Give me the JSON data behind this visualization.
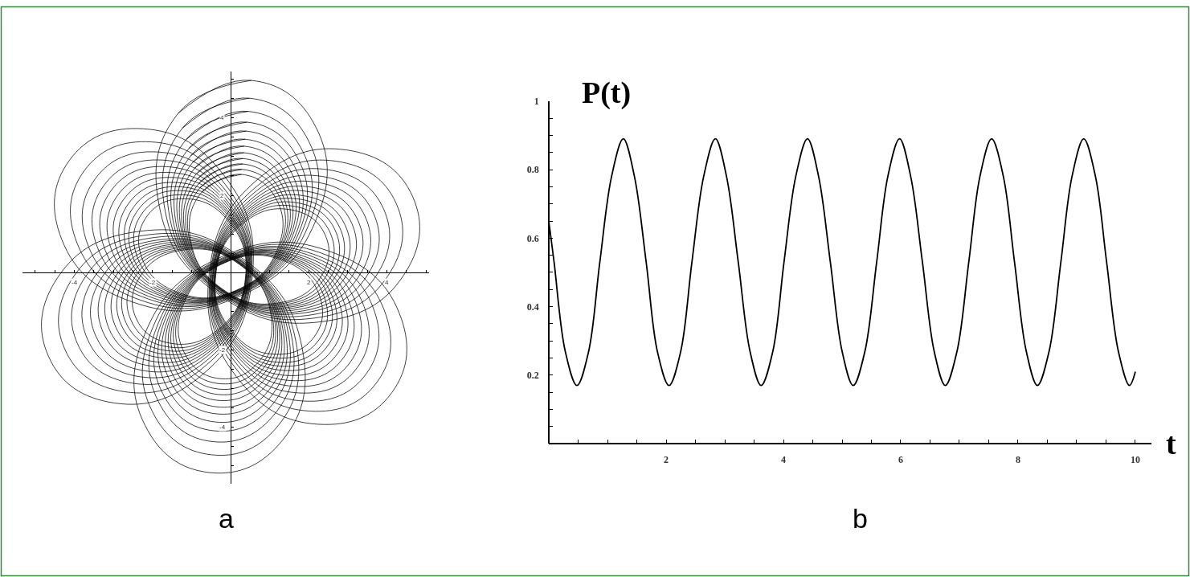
{
  "chart_data": [
    {
      "type": "line",
      "xlim": [
        -5.32,
        5.08
      ],
      "ylim": [
        -5.46,
        5.2
      ],
      "xticks": [
        {
          "value": -5,
          "label": null
        },
        {
          "value": -4.5,
          "label": null
        },
        -4,
        {
          "value": -3.5,
          "label": null
        },
        {
          "value": -3,
          "label": null
        },
        {
          "value": -2.5,
          "label": null
        },
        -2,
        {
          "value": -1.5,
          "label": null
        },
        {
          "value": -1,
          "label": null
        },
        {
          "value": -0.5,
          "label": null
        },
        {
          "value": 0.5,
          "label": null
        },
        {
          "value": 1,
          "label": null
        },
        {
          "value": 1.5,
          "label": null
        },
        2,
        {
          "value": 2.5,
          "label": null
        },
        {
          "value": 3,
          "label": null
        },
        {
          "value": 3.5,
          "label": null
        },
        4,
        {
          "value": 4.5,
          "label": null
        },
        {
          "value": 5,
          "label": null
        }
      ],
      "yticks": [
        {
          "value": -5,
          "label": null
        },
        {
          "value": -4.5,
          "label": null
        },
        -4,
        {
          "value": -3.5,
          "label": null
        },
        {
          "value": -3,
          "label": null
        },
        {
          "value": -2.5,
          "label": null
        },
        -2,
        {
          "value": -1.5,
          "label": null
        },
        {
          "value": -1,
          "label": null
        },
        {
          "value": -0.5,
          "label": null
        },
        {
          "value": 0.5,
          "label": null
        },
        {
          "value": 1,
          "label": null
        },
        {
          "value": 1.5,
          "label": null
        },
        2,
        {
          "value": 2.5,
          "label": null
        },
        {
          "value": 3,
          "label": null
        },
        {
          "value": 3.5,
          "label": null
        },
        4,
        {
          "value": 4.5,
          "label": null
        },
        {
          "value": 5,
          "label": null
        }
      ],
      "annotations": [
        "a"
      ],
      "series": [
        {
          "color": "#000000",
          "x": [
            0.53,
            -1.34,
            -1.83,
            -0.33,
            2.32,
            4.43,
            4.66,
            2.98,
            0.68,
            -0.55,
            0.15,
            2.24,
            4.13,
            4.32,
            2.51,
            -0.23,
            -2.17,
            -2.19,
            -0.53,
            1.34,
            1.83,
            0.33,
            -2.32,
            -4.43,
            -4.66,
            -2.98,
            -0.68,
            0.55,
            -0.15,
            -2.24,
            -4.13,
            -4.32,
            -2.51,
            0.23,
            2.17,
            2.19,
            0.53,
            -1.34
          ],
          "values": [
            4.97,
            4.12,
            1.74,
            -0.55,
            -1.27,
            -0.07,
            1.97,
            3.17,
            2.4,
            -0.04,
            -2.69,
            -3.92,
            -3.1,
            -1.05,
            0.56,
            0.41,
            -1.52,
            -3.95,
            -5.17,
            -4.32,
            -1.94,
            0.35,
            1.07,
            -0.13,
            -2.17,
            -3.37,
            -2.6,
            -0.16,
            2.49,
            3.72,
            2.9,
            0.85,
            -0.76,
            -0.61,
            1.32,
            3.75,
            4.97,
            4.12
          ]
        },
        {
          "color": "#000000",
          "x": [
            0.48,
            -1.23,
            -1.67,
            -0.31,
            2.1,
            4.03,
            4.24,
            2.71,
            0.61,
            -0.52,
            0.12,
            2.03,
            3.75,
            3.93,
            2.28,
            -0.21,
            -1.98,
            -2.0,
            -0.48,
            1.23,
            1.67,
            0.31,
            -2.1,
            -4.03,
            -4.24,
            -2.71,
            -0.61,
            0.52,
            -0.12,
            -2.03,
            -3.75,
            -3.93,
            -2.28,
            0.21,
            1.98,
            2.0,
            0.48,
            -1.23
          ],
          "values": [
            4.51,
            3.74,
            1.57,
            -0.52,
            -1.18,
            -0.08,
            1.79,
            2.88,
            2.18,
            -0.05,
            -2.46,
            -3.58,
            -2.83,
            -0.96,
            0.52,
            0.38,
            -1.39,
            -3.6,
            -4.71,
            -3.94,
            -1.77,
            0.32,
            0.98,
            -0.12,
            -1.99,
            -3.08,
            -2.38,
            -0.15,
            2.26,
            3.38,
            2.63,
            0.76,
            -0.72,
            -0.58,
            1.19,
            3.4,
            4.51,
            3.74
          ]
        },
        {
          "color": "#000000",
          "x": [
            0.45,
            -1.14,
            -1.56,
            -0.29,
            1.94,
            3.72,
            3.92,
            2.5,
            0.55,
            -0.5,
            0.1,
            1.87,
            3.47,
            3.64,
            2.11,
            -0.2,
            -1.84,
            -1.85,
            -0.45,
            1.14,
            1.56,
            0.29,
            -1.94,
            -3.72,
            -3.92,
            -2.5,
            -0.55,
            0.5,
            -0.1,
            -1.87,
            -3.47,
            -3.64,
            -2.11,
            0.2,
            1.84,
            1.85,
            0.45,
            -1.14
          ],
          "values": [
            4.17,
            3.44,
            1.44,
            -0.5,
            -1.11,
            -0.09,
            1.64,
            2.66,
            2.02,
            -0.05,
            -2.29,
            -3.32,
            -2.62,
            -0.88,
            0.48,
            0.36,
            -1.28,
            -3.33,
            -4.37,
            -3.64,
            -1.64,
            0.3,
            0.91,
            -0.11,
            -1.84,
            -2.86,
            -2.22,
            -0.15,
            2.09,
            3.12,
            2.42,
            0.68,
            -0.68,
            -0.56,
            1.08,
            3.13,
            4.17,
            3.44
          ]
        },
        {
          "color": "#000000",
          "x": [
            0.42,
            -1.07,
            -1.47,
            -0.28,
            1.81,
            3.48,
            3.66,
            2.33,
            0.5,
            -0.48,
            0.08,
            1.74,
            3.24,
            3.4,
            1.97,
            -0.2,
            -1.73,
            -1.74,
            -0.42,
            1.07,
            1.47,
            0.28,
            -1.81,
            -3.48,
            -3.66,
            -2.33,
            -0.5,
            0.48,
            -0.08,
            -1.74,
            -3.24,
            -3.4,
            -1.97,
            0.2,
            1.73,
            1.74,
            0.42,
            -1.07
          ],
          "values": [
            3.89,
            3.21,
            1.33,
            -0.49,
            -1.05,
            -0.1,
            1.53,
            2.49,
            1.88,
            -0.05,
            -2.15,
            -3.11,
            -2.46,
            -0.83,
            0.46,
            0.34,
            -1.19,
            -3.12,
            -4.09,
            -3.41,
            -1.53,
            0.29,
            0.85,
            -0.1,
            -1.73,
            -2.69,
            -2.08,
            -0.15,
            1.95,
            2.91,
            2.26,
            0.63,
            -0.66,
            -0.54,
            0.99,
            2.92,
            3.89,
            3.21
          ]
        },
        {
          "color": "#000000",
          "x": [
            0.4,
            -1.02,
            -1.39,
            -0.27,
            1.71,
            3.28,
            3.45,
            2.19,
            0.47,
            -0.46,
            0.07,
            1.64,
            3.06,
            3.21,
            1.86,
            -0.19,
            -1.64,
            -1.64,
            -0.4,
            1.02,
            1.39,
            0.27,
            -1.71,
            -3.28,
            -3.45,
            -2.19,
            -0.47,
            0.46,
            -0.07,
            -1.64,
            -3.06,
            -3.21,
            -1.86,
            0.19,
            1.64,
            1.64,
            0.4,
            -1.02
          ],
          "values": [
            3.66,
            3.02,
            1.24,
            -0.48,
            -1.01,
            -0.1,
            1.44,
            2.34,
            1.78,
            -0.05,
            -2.03,
            -2.94,
            -2.32,
            -0.78,
            0.43,
            0.32,
            -1.12,
            -2.94,
            -3.86,
            -3.22,
            -1.44,
            0.28,
            0.81,
            -0.1,
            -1.64,
            -2.54,
            -1.98,
            -0.15,
            1.83,
            2.74,
            2.12,
            0.58,
            -0.63,
            -0.52,
            0.92,
            2.74,
            3.66,
            3.02
          ]
        },
        {
          "color": "#000000",
          "x": [
            0.37,
            -0.97,
            -1.32,
            -0.26,
            1.61,
            3.1,
            3.26,
            2.07,
            0.43,
            -0.45,
            0.05,
            1.54,
            2.89,
            3.03,
            1.75,
            -0.18,
            -1.55,
            -1.56,
            -0.37,
            0.97,
            1.32,
            0.26,
            -1.61,
            -3.1,
            -3.26,
            -2.07,
            -0.43,
            0.45,
            -0.05,
            -1.54,
            -2.89,
            -3.03,
            -1.75,
            0.18,
            1.55,
            1.56,
            0.37,
            -0.97
          ],
          "values": [
            3.45,
            2.85,
            1.16,
            -0.46,
            -0.97,
            -0.11,
            1.35,
            2.21,
            1.68,
            -0.05,
            -1.93,
            -2.79,
            -2.2,
            -0.74,
            0.41,
            0.31,
            -1.06,
            -2.78,
            -3.65,
            -3.05,
            -1.36,
            0.26,
            0.77,
            -0.09,
            -1.55,
            -2.41,
            -1.88,
            -0.15,
            1.73,
            2.59,
            2.0,
            0.54,
            -0.61,
            -0.51,
            0.86,
            2.58,
            3.45,
            2.85
          ]
        },
        {
          "color": "#000000",
          "x": [
            0.35,
            -0.92,
            -1.26,
            -0.26,
            1.52,
            2.94,
            3.1,
            1.96,
            0.4,
            -0.44,
            0.04,
            1.46,
            2.74,
            2.88,
            1.66,
            -0.18,
            -1.48,
            -1.48,
            -0.35,
            0.92,
            1.26,
            0.26,
            -1.52,
            -2.94,
            -3.1,
            -1.96,
            -0.4,
            0.44,
            -0.04,
            -1.46,
            -2.74,
            -2.88,
            -1.66,
            0.18,
            1.48,
            1.48,
            0.35,
            -0.92
          ],
          "values": [
            3.27,
            2.7,
            1.09,
            -0.45,
            -0.93,
            -0.11,
            1.28,
            2.1,
            1.59,
            -0.05,
            -1.84,
            -2.66,
            -2.09,
            -0.7,
            0.4,
            0.3,
            -1.01,
            -2.64,
            -3.47,
            -2.9,
            -1.29,
            0.25,
            0.73,
            -0.09,
            -1.48,
            -2.3,
            -1.79,
            -0.15,
            1.64,
            2.46,
            1.89,
            0.5,
            -0.6,
            -0.5,
            0.81,
            2.44,
            3.27,
            2.7
          ]
        },
        {
          "color": "#000000",
          "x": [
            0.34,
            -0.88,
            -1.21,
            -0.25,
            1.45,
            2.8,
            2.94,
            1.86,
            0.37,
            -0.42,
            0.03,
            1.38,
            2.61,
            2.74,
            1.58,
            -0.17,
            -1.41,
            -1.41,
            -0.34,
            0.88,
            1.21,
            0.25,
            -1.45,
            -2.8,
            -2.94,
            -1.86,
            -0.37,
            0.42,
            -0.03,
            -1.38,
            -2.61,
            -2.74,
            -1.58,
            0.17,
            1.41,
            1.41,
            0.34,
            -0.88
          ],
          "values": [
            3.1,
            2.55,
            1.03,
            -0.44,
            -0.9,
            -0.12,
            1.21,
            1.99,
            1.51,
            -0.06,
            -1.75,
            -2.53,
            -1.99,
            -0.66,
            0.38,
            0.29,
            -0.95,
            -2.51,
            -3.3,
            -2.75,
            -1.23,
            0.24,
            0.7,
            -0.08,
            -1.41,
            -2.19,
            -1.71,
            -0.14,
            1.55,
            2.33,
            1.79,
            0.46,
            -0.58,
            -0.49,
            0.75,
            2.31,
            3.1,
            2.55
          ]
        },
        {
          "color": "#000000",
          "x": [
            0.32,
            -0.84,
            -1.16,
            -0.24,
            1.38,
            2.67,
            2.8,
            1.77,
            0.35,
            -0.41,
            0.02,
            1.31,
            2.48,
            2.61,
            1.51,
            -0.17,
            -1.35,
            -1.35,
            -0.32,
            0.84,
            1.16,
            0.24,
            -1.38,
            -2.67,
            -2.8,
            -1.77,
            -0.35,
            0.41,
            -0.02,
            -1.31,
            -2.48,
            -2.61,
            -1.51,
            0.17,
            1.35,
            1.35,
            0.32,
            -0.84
          ],
          "values": [
            2.95,
            2.43,
            0.97,
            -0.44,
            -0.87,
            -0.12,
            1.15,
            1.9,
            1.44,
            -0.06,
            -1.68,
            -2.42,
            -1.9,
            -0.63,
            0.37,
            0.28,
            -0.91,
            -2.4,
            -3.15,
            -2.63,
            -1.17,
            0.24,
            0.67,
            -0.08,
            -1.35,
            -2.1,
            -1.64,
            -0.14,
            1.48,
            2.22,
            1.7,
            0.43,
            -0.57,
            -0.48,
            0.71,
            2.2,
            2.95,
            2.43
          ]
        },
        {
          "color": "#000000",
          "x": [
            0.31,
            -0.81,
            -1.11,
            -0.24,
            1.31,
            2.55,
            2.68,
            1.68,
            0.33,
            -0.4,
            0.01,
            1.25,
            2.37,
            2.5,
            1.44,
            -0.16,
            -1.3,
            -1.29,
            -0.31,
            0.81,
            1.11,
            0.24,
            -1.31,
            -2.55,
            -2.68,
            -1.68,
            -0.33,
            0.4,
            -0.01,
            -1.25,
            -2.37,
            -2.5,
            -1.44,
            0.16,
            1.3,
            1.29,
            0.31,
            -0.81
          ],
          "values": [
            2.81,
            2.31,
            0.92,
            -0.43,
            -0.84,
            -0.13,
            1.09,
            1.81,
            1.37,
            -0.06,
            -1.61,
            -2.32,
            -1.82,
            -0.6,
            0.35,
            0.27,
            -0.87,
            -2.29,
            -3.01,
            -2.51,
            -1.12,
            0.23,
            0.64,
            -0.07,
            -1.29,
            -2.01,
            -1.57,
            -0.14,
            1.41,
            2.12,
            1.62,
            0.4,
            -0.55,
            -0.47,
            0.67,
            2.09,
            2.81,
            2.31
          ]
        },
        {
          "color": "#000000",
          "x": [
            0.29,
            -0.78,
            -1.06,
            -0.23,
            1.25,
            2.42,
            2.55,
            1.6,
            0.3,
            -0.39,
            0.01,
            1.19,
            2.26,
            2.38,
            1.37,
            -0.16,
            -1.24,
            -1.24,
            -0.29,
            0.78,
            1.06,
            0.23,
            -1.25,
            -2.42,
            -2.55,
            -1.6,
            -0.3,
            0.39,
            -0.01,
            -1.19,
            -2.26,
            -2.38,
            -1.37,
            0.16,
            1.24,
            1.24,
            0.29,
            -0.78
          ],
          "values": [
            2.67,
            2.2,
            0.87,
            -0.42,
            -0.81,
            -0.13,
            1.03,
            1.72,
            1.3,
            -0.06,
            -1.54,
            -2.21,
            -1.74,
            -0.58,
            0.34,
            0.26,
            -0.82,
            -2.19,
            -2.87,
            -2.4,
            -1.07,
            0.22,
            0.61,
            -0.07,
            -1.23,
            -1.92,
            -1.5,
            -0.14,
            1.34,
            2.01,
            1.54,
            0.38,
            -0.54,
            -0.46,
            0.62,
            1.99,
            2.67,
            2.2
          ]
        },
        {
          "color": "#000000",
          "x": [
            0.28,
            -0.74,
            -1.02,
            -0.23,
            1.18,
            2.3,
            2.42,
            1.52,
            0.28,
            -0.38,
            0,
            1.12,
            2.14,
            2.26,
            1.3,
            -0.16,
            -1.19,
            -1.18,
            -0.28,
            0.74,
            1.02,
            0.23,
            -1.18,
            -2.3,
            -2.42,
            -1.52,
            -0.28,
            0.38,
            0,
            -1.12,
            -2.14,
            -2.26,
            -1.3,
            0.16,
            1.19,
            1.18,
            0.28,
            -0.74
          ],
          "values": [
            2.54,
            2.08,
            0.81,
            -0.41,
            -0.79,
            -0.13,
            0.98,
            1.63,
            1.24,
            -0.06,
            -1.47,
            -2.11,
            -1.66,
            -0.55,
            0.33,
            0.25,
            -0.78,
            -2.08,
            -2.74,
            -2.28,
            -1.01,
            0.21,
            0.59,
            -0.07,
            -1.18,
            -1.83,
            -1.44,
            -0.14,
            1.27,
            1.91,
            1.46,
            0.35,
            -0.53,
            -0.45,
            0.58,
            1.88,
            2.54,
            2.08
          ]
        }
      ]
    },
    {
      "type": "line",
      "xlabel": "t",
      "ylabel": "P(t)",
      "xlim": [
        0,
        10.27
      ],
      "ylim": [
        0,
        1
      ],
      "xticks": [
        {
          "value": 0.5,
          "label": null
        },
        {
          "value": 1,
          "label": null
        },
        {
          "value": 1.5,
          "label": null
        },
        2,
        {
          "value": 2.5,
          "label": null
        },
        {
          "value": 3,
          "label": null
        },
        {
          "value": 3.5,
          "label": null
        },
        4,
        {
          "value": 4.5,
          "label": null
        },
        {
          "value": 5,
          "label": null
        },
        {
          "value": 5.5,
          "label": null
        },
        6,
        {
          "value": 6.5,
          "label": null
        },
        {
          "value": 7,
          "label": null
        },
        {
          "value": 7.5,
          "label": null
        },
        8,
        {
          "value": 8.5,
          "label": null
        },
        {
          "value": 9,
          "label": null
        },
        {
          "value": 9.5,
          "label": null
        },
        10
      ],
      "yticks": [
        {
          "value": 0.05,
          "label": null
        },
        {
          "value": 0.1,
          "label": null
        },
        {
          "value": 0.15,
          "label": null
        },
        0.2,
        {
          "value": 0.25,
          "label": null
        },
        {
          "value": 0.3,
          "label": null
        },
        {
          "value": 0.35,
          "label": null
        },
        0.4,
        {
          "value": 0.45,
          "label": null
        },
        {
          "value": 0.5,
          "label": null
        },
        {
          "value": 0.55,
          "label": null
        },
        0.6,
        {
          "value": 0.65,
          "label": null
        },
        {
          "value": 0.7,
          "label": null
        },
        {
          "value": 0.75,
          "label": null
        },
        0.8,
        {
          "value": 0.85,
          "label": null
        },
        {
          "value": 0.9,
          "label": null
        },
        {
          "value": 0.95,
          "label": null
        },
        1
      ],
      "annotations": [
        "b"
      ],
      "x": [
        0,
        0.09,
        0.28,
        0.48,
        0.68,
        0.87,
        1.07,
        1.27,
        1.46,
        1.66,
        1.85,
        2.05,
        2.25,
        2.44,
        2.64,
        2.84,
        3.03,
        3.23,
        3.43,
        3.62,
        3.82,
        4.01,
        4.21,
        4.41,
        4.6,
        4.8,
        5.0,
        5.19,
        5.39,
        5.59,
        5.78,
        5.98,
        6.17,
        6.37,
        6.57,
        6.76,
        6.96,
        7.16,
        7.35,
        7.55,
        7.75,
        7.94,
        8.14,
        8.33,
        8.53,
        8.73,
        8.92,
        9.12,
        9.32,
        9.51,
        9.71,
        9.9,
        10
      ],
      "series": [
        {
          "color": "#000000",
          "values": [
            0.65,
            0.53,
            0.27,
            0.17,
            0.27,
            0.53,
            0.78,
            0.89,
            0.78,
            0.53,
            0.27,
            0.17,
            0.27,
            0.53,
            0.78,
            0.89,
            0.78,
            0.53,
            0.27,
            0.17,
            0.27,
            0.53,
            0.78,
            0.89,
            0.78,
            0.53,
            0.27,
            0.17,
            0.27,
            0.53,
            0.78,
            0.89,
            0.78,
            0.53,
            0.27,
            0.17,
            0.27,
            0.53,
            0.78,
            0.89,
            0.78,
            0.53,
            0.27,
            0.17,
            0.27,
            0.53,
            0.78,
            0.89,
            0.78,
            0.53,
            0.27,
            0.17,
            0.21
          ]
        }
      ]
    }
  ]
}
